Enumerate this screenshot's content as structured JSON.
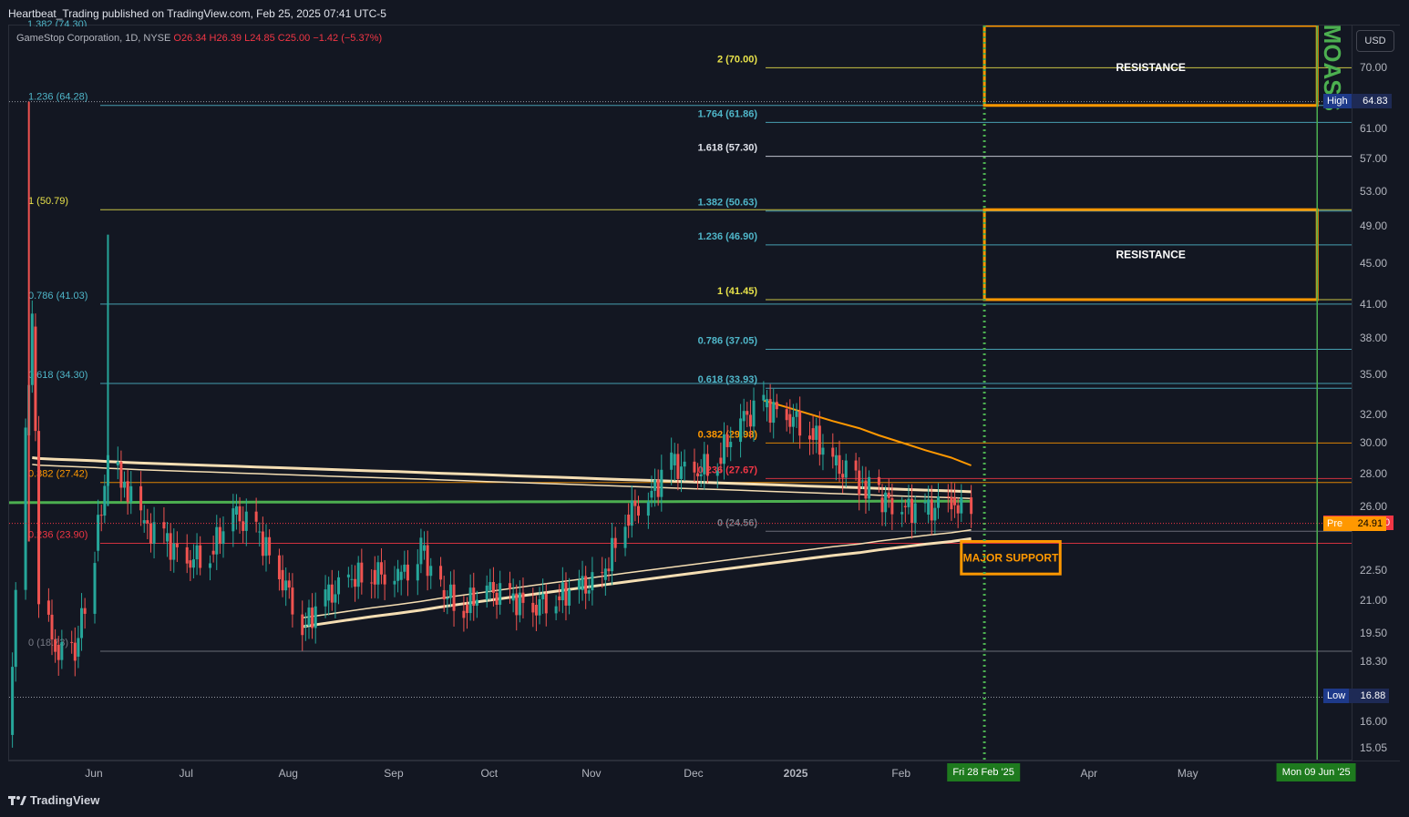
{
  "header": {
    "published": "Heartbeat_Trading published on TradingView.com, Feb 25, 2025 07:41 UTC-5",
    "symbol": "GameStop Corporation, 1D, NYSE",
    "ohlc": "O26.34 H26.39 L24.85 C25.00 −1.42 (−5.37%)",
    "top_clipped_label": "1.382 (74.30)"
  },
  "currency_button": "USD",
  "brand": "TradingView",
  "colors": {
    "background": "#131722",
    "fib_yellow": "#e8e24a",
    "fib_cyan": "#4fb6c9",
    "fib_orange": "#ff9800",
    "fib_red": "#f23645",
    "fib_gray": "#787b86",
    "fib_white": "#e0e3eb",
    "box_orange": "#ff9800",
    "vwap_band": "#f5deb3",
    "ema_green": "#4caf50",
    "up_candle": "#26a69a",
    "down_candle": "#ef5350",
    "moass_green": "#4caf50"
  },
  "price_axis": {
    "ticks": [
      "70.00",
      "61.00",
      "57.00",
      "53.00",
      "49.00",
      "45.00",
      "41.00",
      "38.00",
      "35.00",
      "32.00",
      "30.00",
      "28.00",
      "26.00",
      "22.50",
      "21.00",
      "19.50",
      "18.30",
      "16.00",
      "15.05"
    ],
    "tags": [
      {
        "name": "High",
        "value": "64.83"
      },
      {
        "name": "GME",
        "value": "25.00"
      },
      {
        "name": "Pre",
        "value": "24.91"
      },
      {
        "name": "Low",
        "value": "16.88"
      }
    ]
  },
  "time_axis": {
    "labels": [
      "Jun",
      "Jul",
      "Aug",
      "Sep",
      "Oct",
      "Nov",
      "Dec",
      "2025",
      "Feb",
      "Apr",
      "May"
    ],
    "badges": [
      "Fri 28 Feb '25",
      "Mon 09 Jun '25"
    ]
  },
  "annotations": {
    "resistance_top": "RESISTANCE",
    "resistance_mid": "RESISTANCE",
    "major_support": "MAJOR SUPPORT",
    "moass": "MOASS"
  },
  "chart_data": {
    "type": "candlestick",
    "symbol": "GME",
    "timeframe": "1D",
    "yscale": "log",
    "ylim": [
      14.6,
      77
    ],
    "x_range": [
      "2024-05-08",
      "2025-06-20"
    ],
    "last": {
      "close": 25.0,
      "premarket": 24.91
    },
    "high": 64.83,
    "low": 16.88,
    "closes_approx": [
      [
        "2024-05-08",
        15.5
      ],
      [
        "2024-05-13",
        30.5
      ],
      [
        "2024-05-15",
        39.0
      ],
      [
        "2024-05-17",
        21.0
      ],
      [
        "2024-05-22",
        19.0
      ],
      [
        "2024-05-28",
        18.5
      ],
      [
        "2024-06-03",
        23.5
      ],
      [
        "2024-06-07",
        28.5
      ],
      [
        "2024-06-12",
        27.5
      ],
      [
        "2024-06-17",
        25.0
      ],
      [
        "2024-06-24",
        24.0
      ],
      [
        "2024-07-01",
        23.0
      ],
      [
        "2024-07-08",
        23.5
      ],
      [
        "2024-07-15",
        25.5
      ],
      [
        "2024-07-22",
        24.5
      ],
      [
        "2024-07-29",
        22.5
      ],
      [
        "2024-08-05",
        19.8
      ],
      [
        "2024-08-12",
        21.0
      ],
      [
        "2024-08-19",
        22.0
      ],
      [
        "2024-08-26",
        22.5
      ],
      [
        "2024-09-03",
        22.0
      ],
      [
        "2024-09-10",
        23.5
      ],
      [
        "2024-09-16",
        21.5
      ],
      [
        "2024-09-23",
        20.8
      ],
      [
        "2024-09-30",
        21.5
      ],
      [
        "2024-10-07",
        21.0
      ],
      [
        "2024-10-14",
        20.8
      ],
      [
        "2024-10-21",
        21.2
      ],
      [
        "2024-10-28",
        21.5
      ],
      [
        "2024-11-04",
        22.0
      ],
      [
        "2024-11-11",
        25.5
      ],
      [
        "2024-11-18",
        26.5
      ],
      [
        "2024-11-25",
        28.5
      ],
      [
        "2024-12-02",
        28.0
      ],
      [
        "2024-12-09",
        29.0
      ],
      [
        "2024-12-16",
        31.5
      ],
      [
        "2024-12-23",
        32.5
      ],
      [
        "2024-12-30",
        32.0
      ],
      [
        "2025-01-06",
        31.0
      ],
      [
        "2025-01-13",
        28.5
      ],
      [
        "2025-01-21",
        27.5
      ],
      [
        "2025-01-27",
        26.5
      ],
      [
        "2025-02-03",
        26.0
      ],
      [
        "2025-02-10",
        25.5
      ],
      [
        "2025-02-18",
        26.5
      ],
      [
        "2025-02-24",
        25.0
      ]
    ],
    "fib_set_left": [
      {
        "label": "1.382 (74.30)",
        "price": 74.3,
        "color": "fib_cyan"
      },
      {
        "label": "1.236 (64.28)",
        "price": 64.28,
        "color": "fib_cyan"
      },
      {
        "label": "1 (50.79)",
        "price": 50.79,
        "color": "fib_yellow"
      },
      {
        "label": "0.786 (41.03)",
        "price": 41.03,
        "color": "fib_cyan"
      },
      {
        "label": "0.618 (34.30)",
        "price": 34.3,
        "color": "fib_cyan"
      },
      {
        "label": "0.382 (27.42)",
        "price": 27.42,
        "color": "fib_orange"
      },
      {
        "label": "0.236 (23.90)",
        "price": 23.9,
        "color": "fib_red"
      },
      {
        "label": "0 (18.73)",
        "price": 18.73,
        "color": "fib_gray"
      }
    ],
    "fib_set_right": [
      {
        "label": "2 (70.00)",
        "price": 70.0,
        "color": "fib_yellow"
      },
      {
        "label": "1.764 (61.86)",
        "price": 61.86,
        "color": "fib_cyan"
      },
      {
        "label": "1.618 (57.30)",
        "price": 57.3,
        "color": "fib_white"
      },
      {
        "label": "1.382 (50.63)",
        "price": 50.63,
        "color": "fib_cyan"
      },
      {
        "label": "1.236 (46.90)",
        "price": 46.9,
        "color": "fib_cyan"
      },
      {
        "label": "1 (41.45)",
        "price": 41.45,
        "color": "fib_yellow"
      },
      {
        "label": "0.786 (37.05)",
        "price": 37.05,
        "color": "fib_cyan"
      },
      {
        "label": "0.618 (33.93)",
        "price": 33.93,
        "color": "fib_cyan"
      },
      {
        "label": "0.382 (29.98)",
        "price": 29.98,
        "color": "fib_orange"
      },
      {
        "label": "0.236 (27.67)",
        "price": 27.67,
        "color": "fib_red"
      },
      {
        "label": "0 (24.56)",
        "price": 24.56,
        "color": "fib_gray"
      }
    ],
    "zones": [
      {
        "name": "RESISTANCE",
        "from": "2025-02-28",
        "to": "2025-06-09",
        "low": 64.28,
        "high": 77
      },
      {
        "name": "RESISTANCE",
        "from": "2025-02-28",
        "to": "2025-06-09",
        "low": 41.45,
        "high": 50.79
      },
      {
        "name": "MAJOR SUPPORT",
        "from": "2025-02-21",
        "to": "2025-03-23",
        "low": 22.3,
        "high": 24.0
      }
    ],
    "vertical_markers": [
      {
        "date": "2025-02-28",
        "style": "dotted"
      },
      {
        "date": "2025-06-09",
        "style": "solid"
      }
    ]
  }
}
